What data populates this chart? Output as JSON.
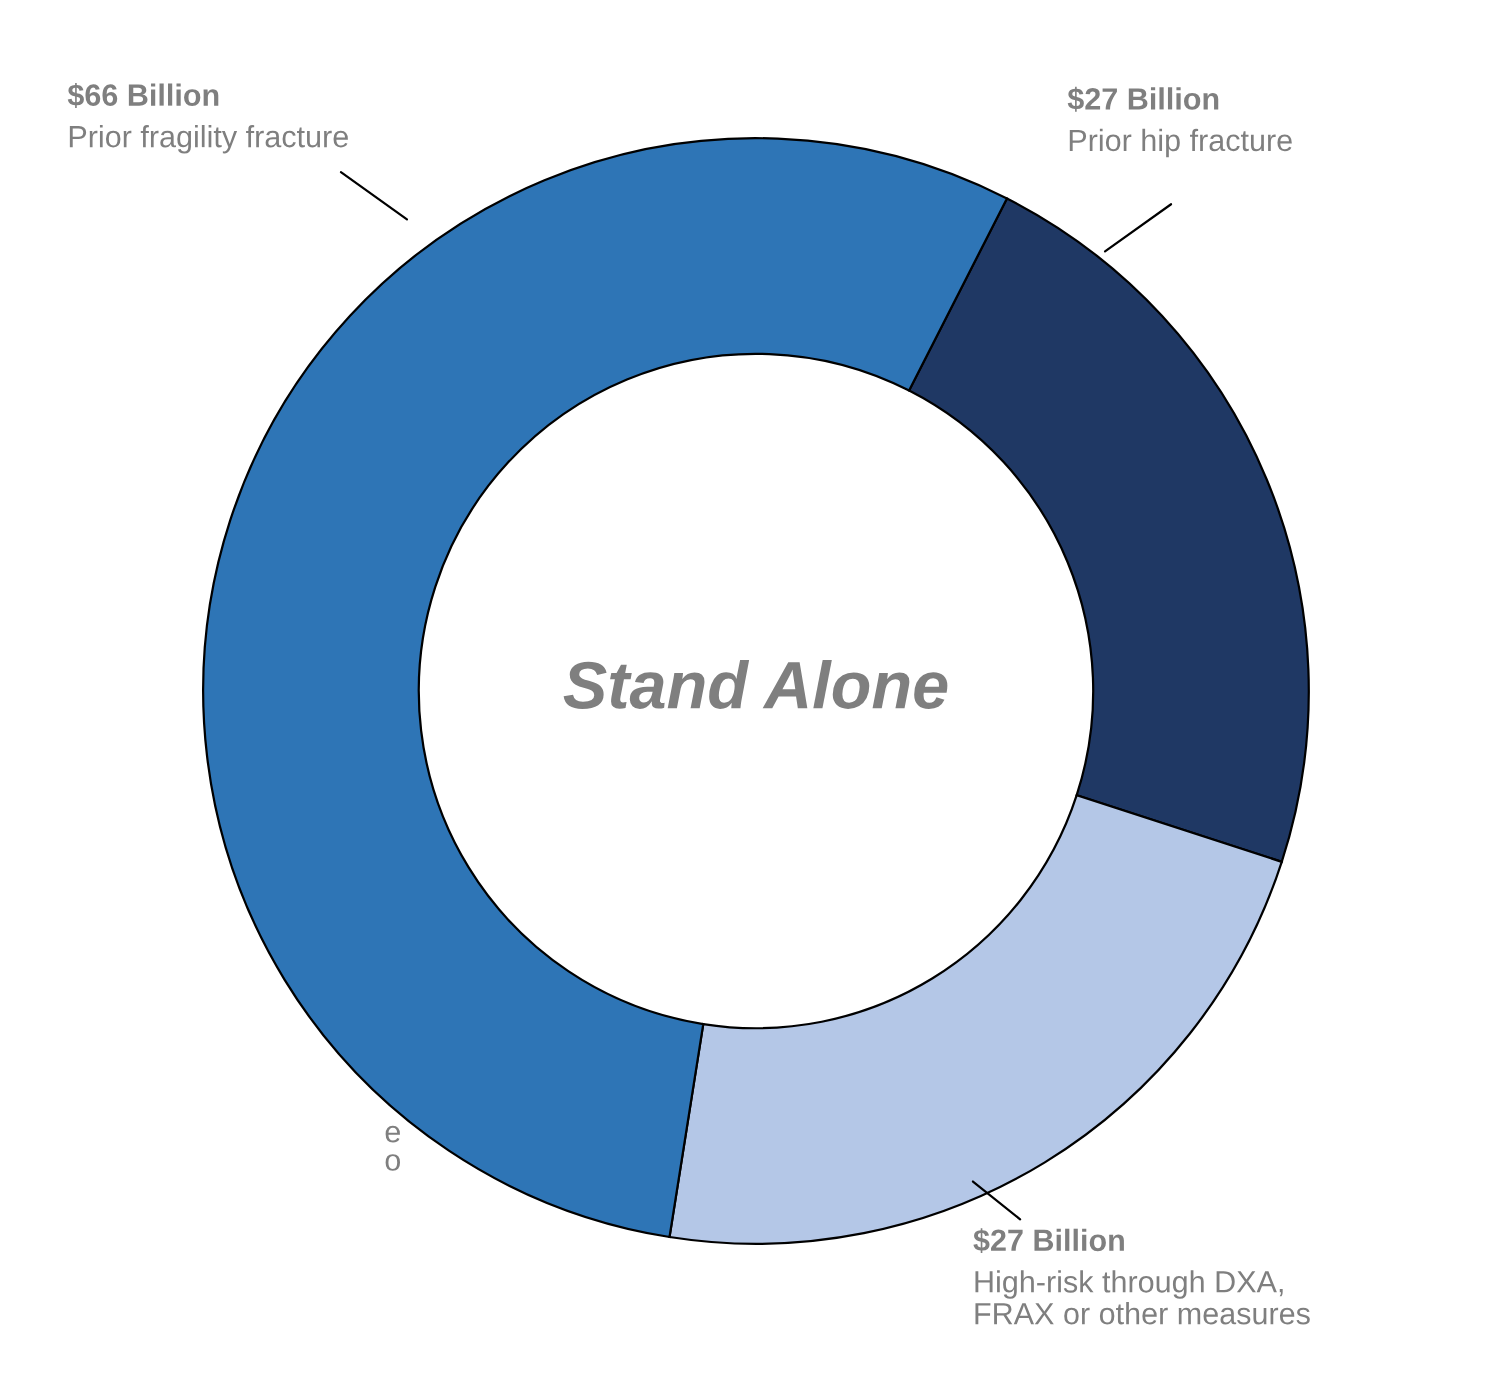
{
  "chart_data": {
    "type": "donut",
    "categories": [
      "Prior hip fracture",
      "High-risk through DXA,\nFRAX or other measures",
      "Prior fragility fracture"
    ],
    "values": [
      27,
      27,
      66
    ],
    "value_labels": [
      "$27 Billion",
      "$27 Billion",
      "$66 Billion"
    ],
    "colors": [
      "#1f3864",
      "#b4c7e7",
      "#2e75b6"
    ],
    "annotations": [
      "Stand Alone",
      "e",
      "o"
    ]
  }
}
